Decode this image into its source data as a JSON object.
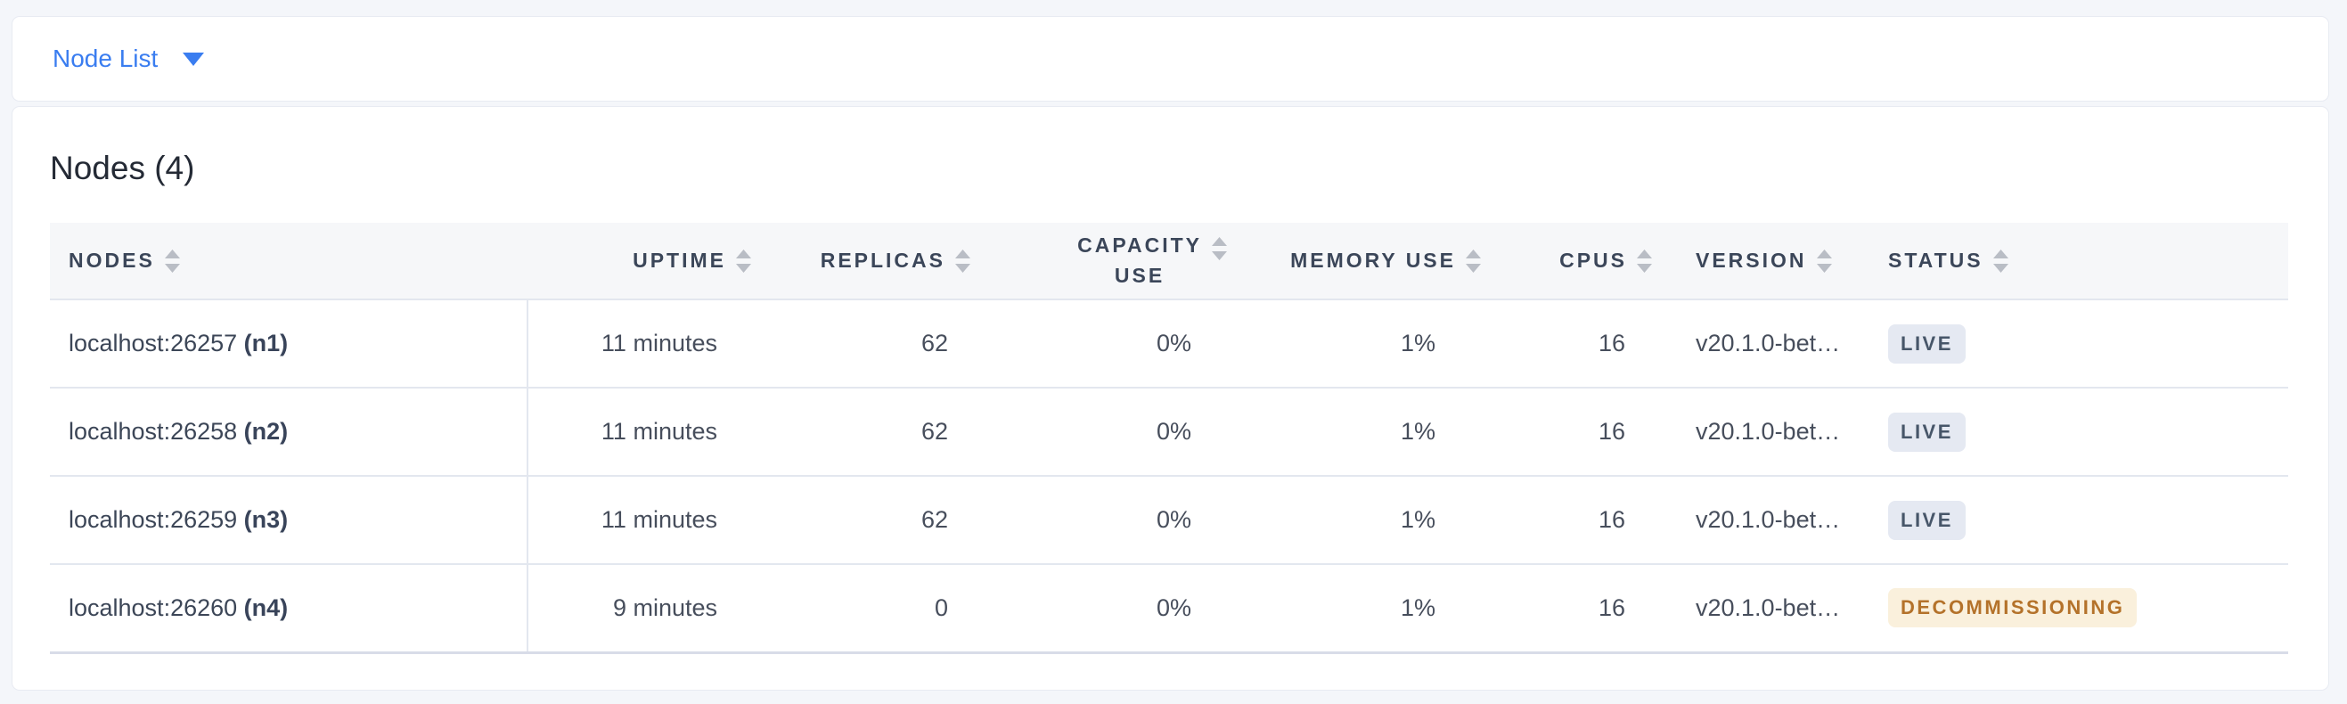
{
  "colors": {
    "accent_blue": "#3a7df0",
    "page_background": "#f4f6fa",
    "header_text": "#3b4659",
    "live_badge_bg": "#e5e9f2",
    "live_badge_text": "#475669",
    "decommissioning_badge_bg": "#faf0dc",
    "decommissioning_badge_text": "#b4722a"
  },
  "selector": {
    "label": "Node List",
    "caret_icon": "caret-down-icon"
  },
  "panel": {
    "title": "Nodes (4)",
    "table": {
      "columns": [
        {
          "key": "nodes",
          "label": "NODES",
          "align": "left",
          "sort_icon": "sort-icon"
        },
        {
          "key": "uptime",
          "label": "UPTIME",
          "align": "right",
          "sort_icon": "sort-icon"
        },
        {
          "key": "replicas",
          "label": "REPLICAS",
          "align": "right",
          "sort_icon": "sort-icon"
        },
        {
          "key": "capacity",
          "label": "CAPACITY\nUSE",
          "align": "right",
          "sort_icon": "sort-icon"
        },
        {
          "key": "memory",
          "label": "MEMORY USE",
          "align": "right",
          "sort_icon": "sort-icon"
        },
        {
          "key": "cpus",
          "label": "CPUS",
          "align": "right",
          "sort_icon": "sort-icon"
        },
        {
          "key": "version",
          "label": "VERSION",
          "align": "left",
          "sort_icon": "sort-icon"
        },
        {
          "key": "status",
          "label": "STATUS",
          "align": "left",
          "sort_icon": "sort-icon"
        }
      ],
      "rows": [
        {
          "address": "localhost:26257",
          "node_id": "(n1)",
          "uptime": "11 minutes",
          "replicas": "62",
          "capacity_use": "0%",
          "memory_use": "1%",
          "cpus": "16",
          "version": "v20.1.0-bet…",
          "status": "LIVE"
        },
        {
          "address": "localhost:26258",
          "node_id": "(n2)",
          "uptime": "11 minutes",
          "replicas": "62",
          "capacity_use": "0%",
          "memory_use": "1%",
          "cpus": "16",
          "version": "v20.1.0-bet…",
          "status": "LIVE"
        },
        {
          "address": "localhost:26259",
          "node_id": "(n3)",
          "uptime": "11 minutes",
          "replicas": "62",
          "capacity_use": "0%",
          "memory_use": "1%",
          "cpus": "16",
          "version": "v20.1.0-bet…",
          "status": "LIVE"
        },
        {
          "address": "localhost:26260",
          "node_id": "(n4)",
          "uptime": "9 minutes",
          "replicas": "0",
          "capacity_use": "0%",
          "memory_use": "1%",
          "cpus": "16",
          "version": "v20.1.0-bet…",
          "status": "DECOMMISSIONING"
        }
      ]
    }
  }
}
